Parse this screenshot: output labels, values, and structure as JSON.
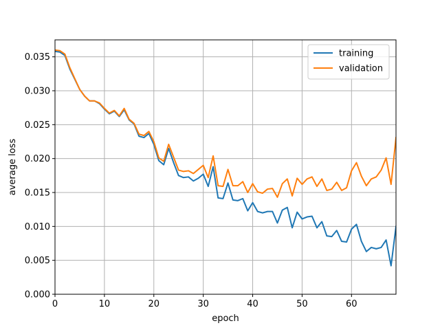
{
  "chart_data": {
    "type": "line",
    "title": "",
    "xlabel": "epoch",
    "ylabel": "average loss",
    "xlim": [
      0,
      69
    ],
    "ylim": [
      0.0,
      0.0375
    ],
    "grid": true,
    "legend_position": "top-right",
    "x_ticks": [
      0,
      10,
      20,
      30,
      40,
      50,
      60
    ],
    "x_tick_labels": [
      "0",
      "10",
      "20",
      "30",
      "40",
      "50",
      "60"
    ],
    "y_ticks": [
      0.0,
      0.005,
      0.01,
      0.015,
      0.02,
      0.025,
      0.03,
      0.035
    ],
    "y_tick_labels": [
      "0.000",
      "0.005",
      "0.010",
      "0.015",
      "0.020",
      "0.025",
      "0.030",
      "0.035"
    ],
    "x": [
      0,
      1,
      2,
      3,
      4,
      5,
      6,
      7,
      8,
      9,
      10,
      11,
      12,
      13,
      14,
      15,
      16,
      17,
      18,
      19,
      20,
      21,
      22,
      23,
      24,
      25,
      26,
      27,
      28,
      29,
      30,
      31,
      32,
      33,
      34,
      35,
      36,
      37,
      38,
      39,
      40,
      41,
      42,
      43,
      44,
      45,
      46,
      47,
      48,
      49,
      50,
      51,
      52,
      53,
      54,
      55,
      56,
      57,
      58,
      59,
      60,
      61,
      62,
      63,
      64,
      65,
      66,
      67,
      68,
      69
    ],
    "series": [
      {
        "name": "training",
        "color": "#1f77b4",
        "values": [
          0.0358,
          0.0357,
          0.0352,
          0.0332,
          0.0317,
          0.0302,
          0.0292,
          0.0285,
          0.0285,
          0.0281,
          0.0273,
          0.0266,
          0.027,
          0.0262,
          0.0272,
          0.0257,
          0.0251,
          0.0233,
          0.0231,
          0.0237,
          0.0221,
          0.0197,
          0.0191,
          0.0215,
          0.0194,
          0.0175,
          0.0172,
          0.0173,
          0.0167,
          0.0171,
          0.0177,
          0.0159,
          0.0188,
          0.0142,
          0.0141,
          0.0164,
          0.0139,
          0.0138,
          0.0141,
          0.0123,
          0.0135,
          0.0122,
          0.012,
          0.0122,
          0.0122,
          0.0105,
          0.0124,
          0.0128,
          0.0098,
          0.0121,
          0.0111,
          0.0114,
          0.0115,
          0.0098,
          0.0107,
          0.0086,
          0.0085,
          0.0094,
          0.0078,
          0.0077,
          0.0096,
          0.0103,
          0.0078,
          0.0063,
          0.0069,
          0.0067,
          0.0069,
          0.008,
          0.0042,
          0.01
        ]
      },
      {
        "name": "validation",
        "color": "#ff7f0e",
        "values": [
          0.036,
          0.0359,
          0.0354,
          0.0334,
          0.0318,
          0.0302,
          0.0292,
          0.0285,
          0.0285,
          0.0282,
          0.0274,
          0.0267,
          0.0271,
          0.0263,
          0.0274,
          0.0258,
          0.0252,
          0.0236,
          0.0234,
          0.024,
          0.0225,
          0.0201,
          0.0196,
          0.0221,
          0.0202,
          0.0183,
          0.0181,
          0.0182,
          0.0178,
          0.0184,
          0.019,
          0.0172,
          0.0204,
          0.016,
          0.0159,
          0.0184,
          0.016,
          0.016,
          0.0166,
          0.015,
          0.0163,
          0.0151,
          0.0149,
          0.0155,
          0.0156,
          0.0143,
          0.0163,
          0.017,
          0.0145,
          0.0171,
          0.0162,
          0.017,
          0.0173,
          0.0159,
          0.017,
          0.0153,
          0.0155,
          0.0165,
          0.0153,
          0.0157,
          0.0182,
          0.0194,
          0.0174,
          0.016,
          0.017,
          0.0173,
          0.0183,
          0.0201,
          0.0162,
          0.0231
        ]
      }
    ]
  }
}
